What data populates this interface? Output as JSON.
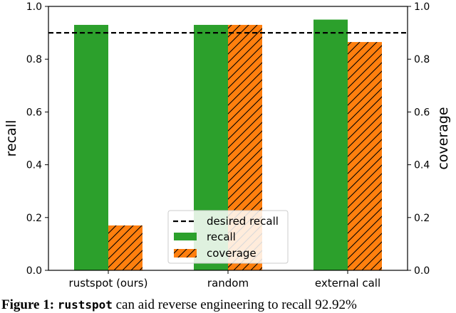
{
  "chart_data": {
    "type": "bar",
    "categories": [
      "rustspot (ours)",
      "random",
      "external call"
    ],
    "series": [
      {
        "name": "recall",
        "axis": "left",
        "color": "#2ca02c",
        "hatch": false,
        "values": [
          0.93,
          0.93,
          0.95
        ]
      },
      {
        "name": "coverage",
        "axis": "right",
        "color": "#ff7f0e",
        "hatch": true,
        "values": [
          0.17,
          0.93,
          0.865
        ]
      }
    ],
    "reference_line": {
      "name": "desired recall",
      "value": 0.9,
      "style": "dashed",
      "color": "#000000"
    },
    "ylabel": "recall",
    "y2label": "coverage",
    "ylim": [
      0,
      1.0
    ],
    "y2lim": [
      0,
      1.0
    ],
    "yticks": [
      "0.0",
      "0.2",
      "0.4",
      "0.6",
      "0.8",
      "1.0"
    ],
    "y2ticks": [
      "0.0",
      "0.2",
      "0.4",
      "0.6",
      "0.8",
      "1.0"
    ],
    "legend_position": "bottom-center",
    "grid": false
  },
  "caption": {
    "label": "Figure 1:",
    "name": "rustspot",
    "text": "can aid reverse engineering to recall 92.92%"
  }
}
